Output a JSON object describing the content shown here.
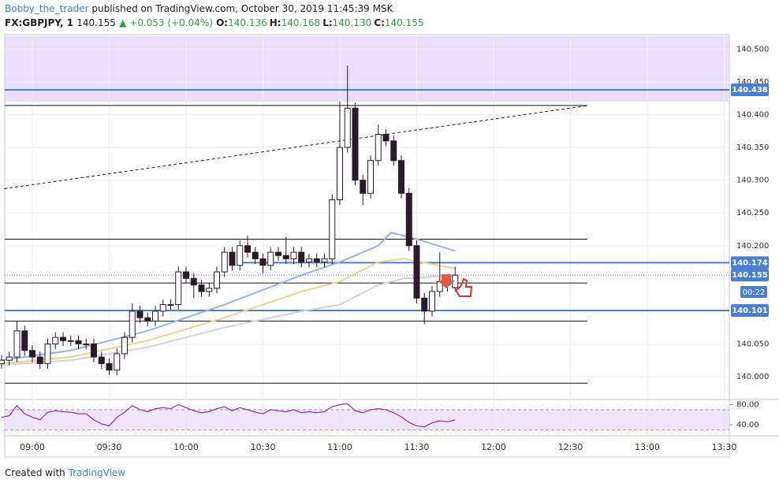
{
  "header": {
    "author": "Bobby_the_trader",
    "published": "published on TradingView.com, October 30, 2019 11:45:39 MSK",
    "symbol": "FX:GBPJPY, 1",
    "last": "140.155",
    "change": "▲ +0.053 (+0.04%)",
    "ohlc": [
      {
        "label": "O:",
        "value": "140.136"
      },
      {
        "label": "H:",
        "value": "140.168"
      },
      {
        "label": "L:",
        "value": "140.130"
      },
      {
        "label": "C:",
        "value": "140.155"
      }
    ]
  },
  "footer": {
    "text": "Created with",
    "brand": "TradingView"
  },
  "chart_data": [
    {
      "type": "candlestick",
      "up_color": "#ffffff",
      "down_color": "#2b1a2b",
      "zone": {
        "ylim": [
          140.42,
          140.52
        ],
        "color": "#e5d4fb"
      },
      "x": [
        "08:48",
        "08:51",
        "08:54",
        "08:57",
        "09:00",
        "09:03",
        "09:06",
        "09:09",
        "09:12",
        "09:15",
        "09:18",
        "09:21",
        "09:24",
        "09:27",
        "09:30",
        "09:33",
        "09:36",
        "09:39",
        "09:42",
        "09:45",
        "09:48",
        "09:51",
        "09:54",
        "09:57",
        "10:00",
        "10:03",
        "10:06",
        "10:09",
        "10:12",
        "10:15",
        "10:18",
        "10:21",
        "10:24",
        "10:27",
        "10:30",
        "10:33",
        "10:36",
        "10:39",
        "10:42",
        "10:45",
        "10:48",
        "10:51",
        "10:54",
        "10:57",
        "11:00",
        "11:03",
        "11:06",
        "11:09",
        "11:12",
        "11:15",
        "11:18",
        "11:21",
        "11:24",
        "11:27",
        "11:30",
        "11:33",
        "11:36",
        "11:39",
        "11:42",
        "11:45"
      ],
      "open": [
        140.02,
        140.025,
        140.03,
        140.07,
        140.04,
        140.03,
        140.02,
        140.05,
        140.06,
        140.055,
        140.055,
        140.05,
        140.05,
        140.03,
        140.02,
        140.01,
        140.035,
        140.06,
        140.1,
        140.09,
        140.085,
        140.1,
        140.11,
        140.11,
        140.16,
        140.15,
        140.14,
        140.13,
        140.135,
        140.16,
        140.19,
        140.17,
        140.2,
        140.19,
        140.18,
        140.17,
        140.19,
        140.185,
        140.18,
        140.19,
        140.175,
        140.18,
        140.175,
        140.18,
        140.27,
        140.35,
        140.41,
        140.3,
        140.28,
        140.33,
        140.37,
        140.36,
        140.33,
        140.28,
        140.2,
        140.12,
        140.1,
        140.13,
        140.145,
        140.136
      ],
      "high": [
        140.033,
        140.038,
        140.085,
        140.078,
        140.048,
        140.038,
        140.058,
        140.068,
        140.068,
        140.063,
        140.063,
        140.058,
        140.058,
        140.038,
        140.028,
        140.043,
        140.068,
        140.112,
        140.108,
        140.098,
        140.108,
        140.118,
        140.118,
        140.168,
        140.168,
        140.158,
        140.148,
        140.143,
        140.168,
        140.198,
        140.198,
        140.208,
        140.215,
        140.198,
        140.188,
        140.198,
        140.198,
        140.213,
        140.198,
        140.198,
        140.188,
        140.188,
        140.188,
        140.278,
        140.42,
        140.475,
        140.418,
        140.308,
        140.338,
        140.385,
        140.378,
        140.368,
        140.338,
        140.288,
        140.208,
        140.128,
        140.138,
        140.19,
        140.153,
        140.168
      ],
      "low": [
        140.012,
        140.017,
        140.022,
        140.032,
        140.022,
        140.012,
        140.012,
        140.042,
        140.047,
        140.047,
        140.042,
        140.042,
        140.022,
        140.012,
        140.003,
        140.002,
        140.027,
        140.052,
        140.082,
        140.077,
        140.077,
        140.092,
        140.102,
        140.102,
        140.142,
        140.12,
        140.122,
        140.122,
        140.127,
        140.152,
        140.162,
        140.162,
        140.182,
        140.172,
        140.158,
        140.162,
        140.177,
        140.172,
        140.172,
        140.167,
        140.167,
        140.167,
        140.167,
        140.172,
        140.262,
        140.342,
        140.292,
        140.262,
        140.272,
        140.322,
        140.352,
        140.322,
        140.272,
        140.192,
        140.112,
        140.08,
        140.092,
        140.122,
        140.13,
        140.13
      ],
      "close": [
        140.025,
        140.03,
        140.07,
        140.04,
        140.03,
        140.02,
        140.05,
        140.06,
        140.055,
        140.055,
        140.05,
        140.05,
        140.03,
        140.02,
        140.01,
        140.035,
        140.06,
        140.1,
        140.09,
        140.085,
        140.1,
        140.11,
        140.11,
        140.16,
        140.15,
        140.14,
        140.13,
        140.135,
        140.16,
        140.19,
        140.17,
        140.2,
        140.19,
        140.18,
        140.17,
        140.19,
        140.185,
        140.18,
        140.19,
        140.175,
        140.18,
        140.175,
        140.18,
        140.27,
        140.35,
        140.41,
        140.3,
        140.28,
        140.33,
        140.37,
        140.36,
        140.33,
        140.28,
        140.2,
        140.12,
        140.1,
        140.13,
        140.145,
        140.14,
        140.155
      ],
      "moving_averages": [
        {
          "color": "#90b5ea",
          "x": [
            "08:48",
            "09:15",
            "09:45",
            "10:15",
            "10:45",
            "11:00",
            "11:15",
            "11:20",
            "11:30",
            "11:45"
          ],
          "values": [
            140.025,
            140.04,
            140.07,
            140.11,
            140.155,
            140.175,
            140.2,
            140.22,
            140.21,
            140.192
          ]
        },
        {
          "color": "#f0d38a",
          "x": [
            "08:48",
            "09:15",
            "09:45",
            "10:15",
            "10:45",
            "11:00",
            "11:15",
            "11:25",
            "11:45"
          ],
          "values": [
            140.02,
            140.03,
            140.055,
            140.09,
            140.13,
            140.145,
            140.175,
            140.18,
            140.165
          ]
        },
        {
          "color": "#d4d4d4",
          "x": [
            "08:48",
            "09:15",
            "09:45",
            "10:15",
            "10:45",
            "11:00",
            "11:15",
            "11:25",
            "11:45"
          ],
          "values": [
            140.018,
            140.025,
            140.045,
            140.075,
            140.1,
            140.11,
            140.14,
            140.15,
            140.155
          ]
        }
      ],
      "trendline": {
        "x": [
          "08:49",
          "12:37"
        ],
        "values": [
          140.287,
          140.414
        ]
      },
      "levels": [
        140.414,
        140.21,
        140.143,
        140.085,
        139.99
      ],
      "blue_levels": [
        140.438,
        140.174,
        140.101
      ],
      "price_labels": [
        {
          "value": 140.438,
          "label": "140.438"
        },
        {
          "value": 140.174,
          "label": "140.174"
        },
        {
          "value": 140.155,
          "label": "140.155"
        },
        {
          "value": 140.101,
          "label": "140.101"
        }
      ],
      "countdown": "00:22",
      "ylim": [
        139.9675,
        140.5222
      ],
      "yticks": [
        {
          "value": 140.0,
          "label": "140.000"
        },
        {
          "value": 140.05,
          "label": "140.050"
        },
        {
          "value": 140.1,
          "label": "140.100"
        },
        {
          "value": 140.15,
          "label": "140.150"
        },
        {
          "value": 140.2,
          "label": "140.200"
        },
        {
          "value": 140.25,
          "label": "140.250"
        },
        {
          "value": 140.3,
          "label": "140.300"
        },
        {
          "value": 140.35,
          "label": "140.350"
        },
        {
          "value": 140.4,
          "label": "140.400"
        },
        {
          "value": 140.45,
          "label": "140.450"
        },
        {
          "value": 140.5,
          "label": "140.500"
        }
      ],
      "xticks": [
        "09:00",
        "09:30",
        "10:00",
        "10:30",
        "11:00",
        "11:30",
        "12:00",
        "12:30",
        "13:00",
        "13:30"
      ]
    },
    {
      "type": "line",
      "color": "#9c27b0",
      "band": [
        30,
        70
      ],
      "ylim": [
        20,
        87
      ],
      "yticks": [
        {
          "value": 80,
          "label": "80.00"
        },
        {
          "value": 40,
          "label": "40.00"
        }
      ],
      "values": [
        55,
        58,
        78,
        62,
        55,
        50,
        65,
        68,
        66,
        65,
        62,
        62,
        50,
        42,
        38,
        55,
        65,
        78,
        70,
        66,
        72,
        74,
        72,
        80,
        74,
        68,
        64,
        66,
        72,
        76,
        68,
        74,
        70,
        65,
        62,
        70,
        68,
        66,
        70,
        64,
        66,
        64,
        66,
        76,
        80,
        82,
        68,
        64,
        70,
        72,
        70,
        64,
        56,
        45,
        38,
        36,
        44,
        48,
        46,
        50
      ]
    }
  ]
}
